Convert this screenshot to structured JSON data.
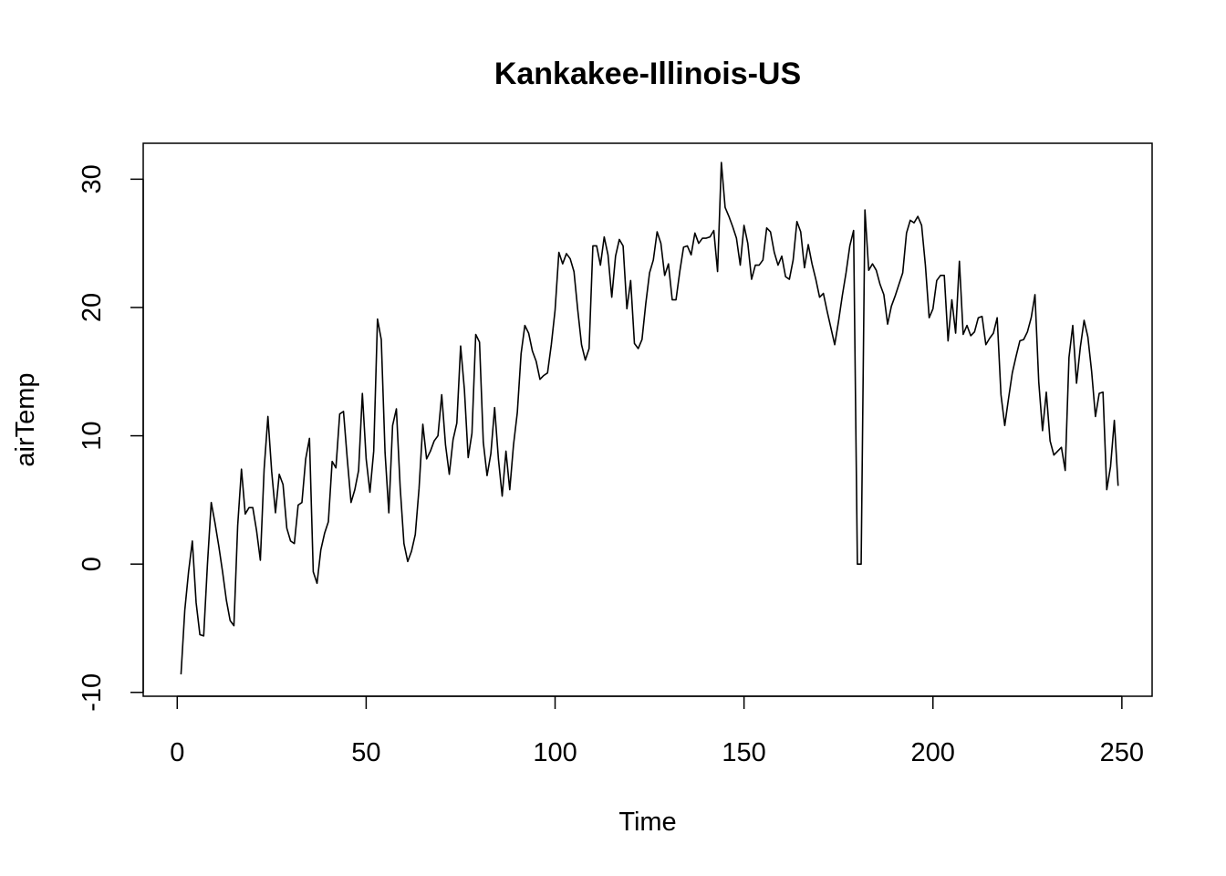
{
  "chart_data": {
    "type": "line",
    "title": "Kankakee-Illinois-US",
    "xlabel": "Time",
    "ylabel": "airTemp",
    "xlim": [
      -9,
      258
    ],
    "ylim": [
      -10.3,
      32.8
    ],
    "x_ticks": [
      0,
      50,
      100,
      150,
      200,
      250
    ],
    "y_ticks": [
      -10,
      0,
      10,
      20,
      30
    ],
    "grid": false,
    "legend": "none",
    "line_color": "#000000",
    "series": [
      {
        "x_start": 1,
        "values": [
          -8.6,
          -3.6,
          -0.6,
          1.8,
          -3.0,
          -5.5,
          -5.6,
          0.0,
          4.8,
          3.2,
          1.4,
          -0.6,
          -2.8,
          -4.4,
          -4.8,
          3.0,
          7.4,
          3.9,
          4.4,
          4.4,
          2.6,
          0.3,
          7.4,
          11.5,
          7.2,
          4.0,
          7.0,
          6.2,
          2.8,
          1.8,
          1.6,
          4.6,
          4.8,
          8.2,
          9.8,
          -0.6,
          -1.5,
          1.1,
          2.4,
          3.3,
          8.0,
          7.5,
          11.7,
          11.9,
          8.2,
          4.8,
          5.8,
          7.3,
          13.3,
          8.2,
          5.6,
          8.8,
          19.1,
          17.5,
          8.7,
          4.0,
          10.8,
          12.1,
          6.0,
          1.6,
          0.2,
          1.0,
          2.3,
          5.9,
          10.9,
          8.2,
          8.8,
          9.6,
          10.0,
          13.2,
          9.3,
          7.0,
          9.7,
          11.0,
          17.0,
          13.6,
          8.3,
          10.2,
          17.9,
          17.3,
          9.5,
          6.9,
          8.6,
          12.2,
          8.2,
          5.3,
          8.8,
          5.8,
          9.3,
          11.8,
          16.4,
          18.6,
          18.0,
          16.6,
          15.8,
          14.4,
          14.7,
          14.9,
          17.1,
          19.8,
          24.3,
          23.4,
          24.2,
          23.8,
          22.8,
          19.8,
          17.1,
          15.9,
          16.8,
          24.8,
          24.8,
          23.3,
          25.5,
          24.1,
          20.8,
          24.0,
          25.3,
          24.8,
          19.9,
          22.1,
          17.2,
          16.8,
          17.5,
          20.3,
          22.7,
          23.7,
          25.9,
          25.0,
          22.5,
          23.4,
          20.6,
          20.6,
          22.8,
          24.7,
          24.8,
          24.1,
          25.8,
          25.0,
          25.4,
          25.4,
          25.5,
          26.0,
          22.8,
          31.3,
          27.8,
          27.1,
          26.3,
          25.4,
          23.3,
          26.4,
          25.0,
          22.2,
          23.3,
          23.3,
          23.7,
          26.2,
          25.9,
          24.3,
          23.3,
          24.0,
          22.4,
          22.2,
          23.7,
          26.7,
          25.9,
          23.1,
          24.9,
          23.4,
          22.2,
          20.8,
          21.1,
          19.7,
          18.4,
          17.1,
          18.9,
          20.9,
          22.7,
          24.8,
          26.0,
          0.0,
          0.0,
          27.6,
          22.9,
          23.4,
          22.9,
          21.8,
          21.0,
          18.7,
          20.1,
          20.9,
          21.8,
          22.7,
          25.8,
          26.8,
          26.6,
          27.1,
          26.4,
          23.3,
          19.2,
          19.9,
          22.1,
          22.5,
          22.5,
          17.4,
          20.6,
          18.0,
          23.6,
          17.9,
          18.6,
          17.8,
          18.1,
          19.2,
          19.3,
          17.1,
          17.6,
          18.0,
          19.2,
          13.2,
          10.8,
          12.9,
          14.9,
          16.2,
          17.4,
          17.5,
          18.1,
          19.2,
          21.0,
          14.2,
          10.4,
          13.4,
          9.6,
          8.5,
          8.8,
          9.1,
          7.3,
          16.1,
          18.6,
          14.1,
          16.9,
          19.0,
          17.7,
          15.0,
          11.5,
          13.3,
          13.4,
          5.8,
          7.6,
          11.2,
          6.1
        ]
      }
    ]
  }
}
